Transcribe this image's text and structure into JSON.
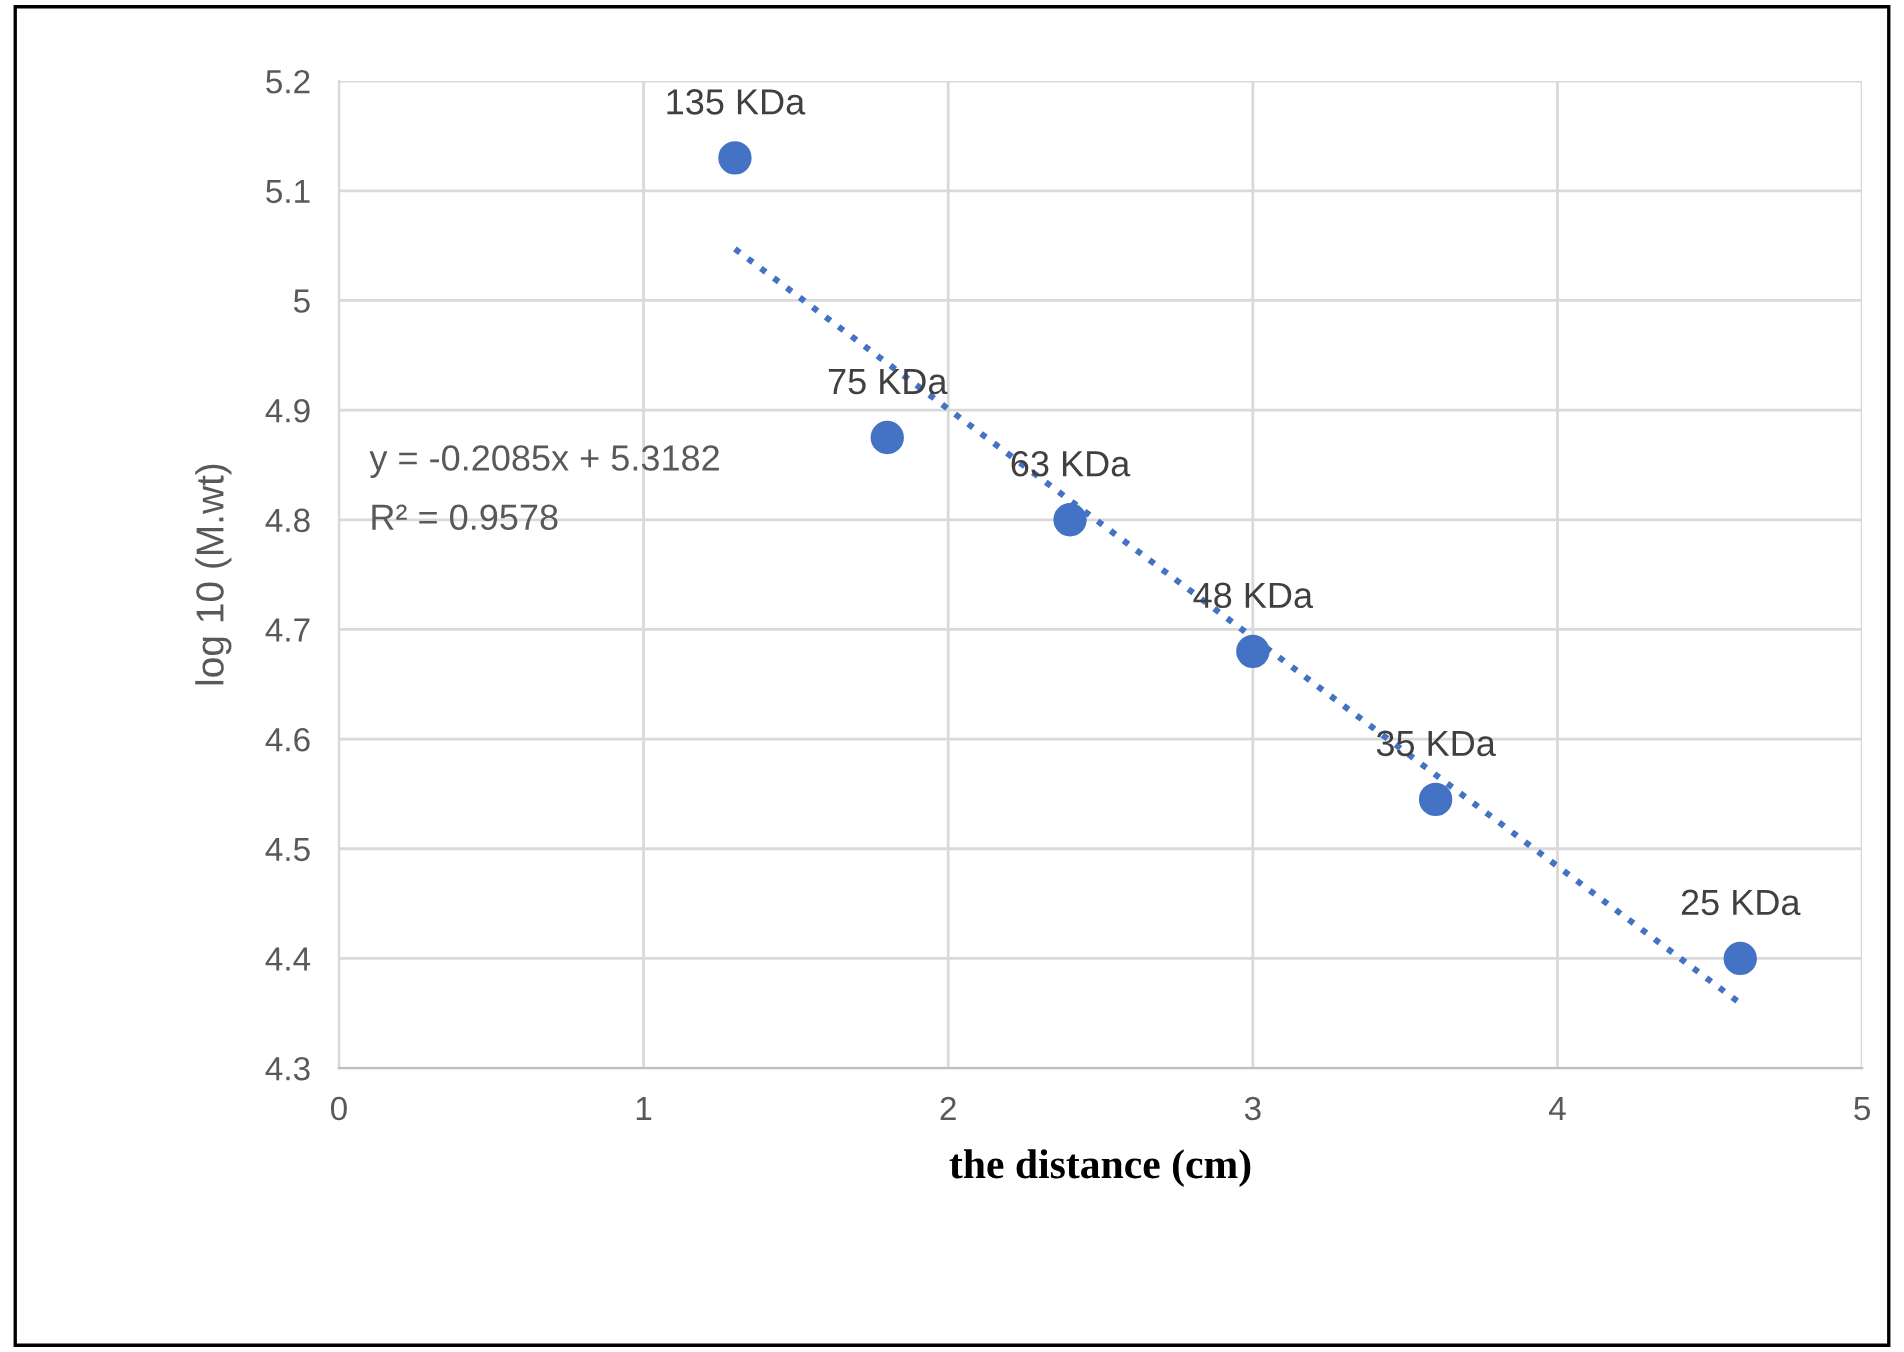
{
  "chart_data": {
    "type": "scatter",
    "xlabel": "the distance (cm)",
    "ylabel": "log 10 (M.wt)",
    "xlim": [
      0,
      5
    ],
    "xticks": [
      0,
      1,
      2,
      3,
      4,
      5
    ],
    "ylim": [
      4.3,
      5.2
    ],
    "yticks": [
      4.3,
      4.4,
      4.5,
      4.6,
      4.7,
      4.8,
      4.9,
      5,
      5.1,
      5.2
    ],
    "grid": true,
    "marker": "circle",
    "series": [
      {
        "color": "#4472c4",
        "x": [
          1.3,
          1.8,
          2.4,
          3.0,
          3.6,
          4.6
        ],
        "values": [
          5.13,
          4.875,
          4.8,
          4.68,
          4.545,
          4.4
        ]
      },
      {
        "type": "line",
        "color": "#4472c4",
        "line_style": "dotted",
        "marker": "none",
        "x": [
          1.3,
          4.6
        ],
        "values": [
          5.047,
          4.359
        ]
      }
    ],
    "annotations": [
      {
        "text": "135 KDa",
        "x": 1.3,
        "y": 5.13
      },
      {
        "text": "75 KDa",
        "x": 1.8,
        "y": 4.875
      },
      {
        "text": "63 KDa",
        "x": 2.4,
        "y": 4.8
      },
      {
        "text": "48 KDa",
        "x": 3.0,
        "y": 4.68
      },
      {
        "text": "35 KDa",
        "x": 3.6,
        "y": 4.545
      },
      {
        "text": "25 KDa",
        "x": 4.6,
        "y": 4.4
      },
      "y = -0.2085x + 5.3182",
      "R² = 0.9578"
    ]
  }
}
